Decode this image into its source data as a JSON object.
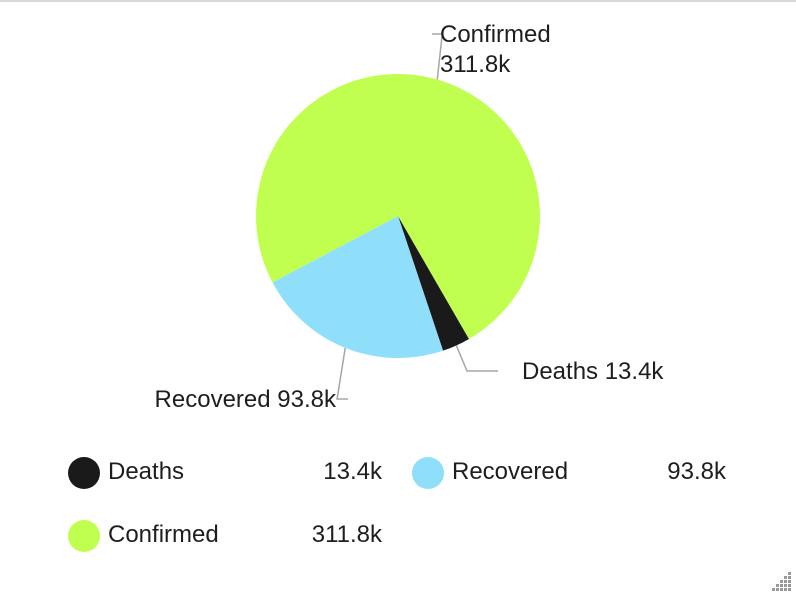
{
  "chart_data": {
    "type": "pie",
    "slices": [
      {
        "name": "Deaths",
        "value": 13.4,
        "display": "13.4k",
        "color": "#1a1a1a"
      },
      {
        "name": "Recovered",
        "value": 93.8,
        "display": "93.8k",
        "color": "#8fdffb"
      },
      {
        "name": "Confirmed",
        "value": 311.8,
        "display": "311.8k",
        "color": "#c0ff50"
      }
    ],
    "legend_position": "bottom",
    "slice_labels": "outside-with-leader-lines"
  },
  "legend": {
    "items": [
      {
        "name": "Deaths",
        "value": "13.4k",
        "color": "#1a1a1a"
      },
      {
        "name": "Recovered",
        "value": "93.8k",
        "color": "#8fdffb"
      },
      {
        "name": "Confirmed",
        "value": "311.8k",
        "color": "#c0ff50"
      }
    ]
  }
}
